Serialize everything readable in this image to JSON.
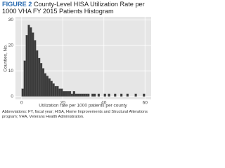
{
  "chart_data": {
    "type": "histogram",
    "figure_label": "FIGURE 2",
    "title": "County-Level HISA Utilization Rate per 1000 VHA FY 2015 Patients Histogram",
    "x_label": "Utilization rate per 1000 patients per county",
    "y_label": "Counties, No.",
    "note": "Abbreviations: FY, fiscal year; HISA, Home Improvements and Structural Alterations program; VHA, Veterans Health Administration.",
    "bins": [
      0,
      1,
      2,
      3,
      4,
      5,
      6,
      7,
      8,
      9,
      10,
      11,
      12,
      13,
      14,
      15,
      16,
      17,
      18,
      19,
      20,
      21,
      22,
      23,
      24,
      25,
      26,
      27,
      28,
      29,
      30,
      31,
      32,
      33,
      34,
      35,
      36,
      37,
      38,
      39,
      40,
      41,
      42,
      43,
      44,
      45,
      46,
      47,
      48,
      49,
      50,
      51,
      52,
      53,
      54,
      55,
      56,
      57,
      58,
      59,
      60
    ],
    "values": [
      3,
      14,
      24,
      28,
      27,
      25,
      22,
      18,
      15,
      13,
      11,
      9,
      8,
      7,
      6,
      5,
      4,
      4,
      3,
      3,
      2,
      2,
      2,
      2,
      1,
      2,
      1,
      1,
      1,
      1,
      1,
      1,
      1,
      0,
      1,
      1,
      0,
      1,
      0,
      0,
      1,
      0,
      1,
      0,
      0,
      1,
      0,
      0,
      1,
      0,
      0,
      1,
      0,
      0,
      0,
      1,
      0,
      0,
      0,
      1
    ],
    "color": "#3a3a3a",
    "xlim": [
      -3,
      63
    ],
    "ylim": [
      -1.2,
      31.2
    ],
    "xticks": [
      0,
      20,
      40,
      60
    ],
    "yticks": [
      0,
      10,
      20,
      30
    ],
    "grid": true
  }
}
